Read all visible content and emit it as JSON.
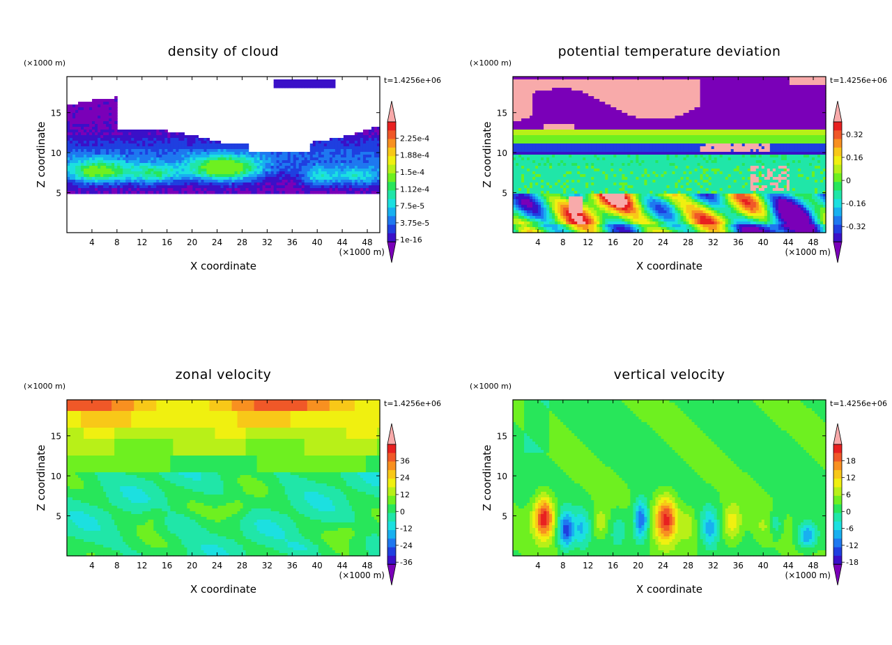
{
  "colors": {
    "background": "#ffffff",
    "palette": [
      "#7a00b8",
      "#3a10c8",
      "#1f3fe0",
      "#1e78f0",
      "#18b0f0",
      "#1ce0e0",
      "#20e6a8",
      "#28e65a",
      "#6ef020",
      "#b8f018",
      "#f0f010",
      "#f8c818",
      "#f89020",
      "#f05828",
      "#e82020",
      "#f8aaaa"
    ]
  },
  "chart_data": [
    {
      "type": "heatmap",
      "id": "cloud",
      "title": "density of cloud",
      "xlabel": "X coordinate",
      "ylabel": "Z coordinate",
      "x_unit": "(×1000 m)",
      "y_unit": "(×1000 m)",
      "time_label": "t=1.4256e+06",
      "xlim": [
        0,
        50
      ],
      "ylim": [
        0,
        19.5
      ],
      "x_ticks": [
        4,
        8,
        12,
        16,
        20,
        24,
        28,
        32,
        36,
        40,
        44,
        48
      ],
      "y_ticks": [
        5,
        10,
        15
      ],
      "colorbar_labels": [
        "2.25e-4",
        "1.88e-4",
        "1.5e-4",
        "1.12e-4",
        "7.5e-5",
        "3.75e-5",
        "1e-16"
      ],
      "description_field": "cloud"
    },
    {
      "type": "heatmap",
      "id": "theta",
      "title": "potential temperature deviation",
      "xlabel": "X coordinate",
      "ylabel": "Z coordinate",
      "x_unit": "(×1000 m)",
      "y_unit": "(×1000 m)",
      "time_label": "t=1.4256e+06",
      "xlim": [
        0,
        50
      ],
      "ylim": [
        0,
        19.5
      ],
      "x_ticks": [
        4,
        8,
        12,
        16,
        20,
        24,
        28,
        32,
        36,
        40,
        44,
        48
      ],
      "y_ticks": [
        5,
        10,
        15
      ],
      "colorbar_labels": [
        "0.32",
        "0.16",
        "0",
        "-0.16",
        "-0.32"
      ],
      "description_field": "theta"
    },
    {
      "type": "heatmap",
      "id": "u",
      "title": "zonal velocity",
      "xlabel": "X coordinate",
      "ylabel": "Z coordinate",
      "x_unit": "(×1000 m)",
      "y_unit": "(×1000 m)",
      "time_label": "t=1.4256e+06",
      "xlim": [
        0,
        50
      ],
      "ylim": [
        0,
        19.5
      ],
      "x_ticks": [
        4,
        8,
        12,
        16,
        20,
        24,
        28,
        32,
        36,
        40,
        44,
        48
      ],
      "y_ticks": [
        5,
        10,
        15
      ],
      "colorbar_labels": [
        "36",
        "24",
        "12",
        "0",
        "-12",
        "-24",
        "-36"
      ],
      "description_field": "u"
    },
    {
      "type": "heatmap",
      "id": "w",
      "title": "vertical velocity",
      "xlabel": "X coordinate",
      "ylabel": "Z coordinate",
      "x_unit": "(×1000 m)",
      "y_unit": "(×1000 m)",
      "time_label": "t=1.4256e+06",
      "xlim": [
        0,
        50
      ],
      "ylim": [
        0,
        19.5
      ],
      "x_ticks": [
        4,
        8,
        12,
        16,
        20,
        24,
        28,
        32,
        36,
        40,
        44,
        48
      ],
      "y_ticks": [
        5,
        10,
        15
      ],
      "colorbar_labels": [
        "18",
        "12",
        "6",
        "0",
        "-6",
        "-12",
        "-18"
      ],
      "description_field": "w"
    }
  ]
}
